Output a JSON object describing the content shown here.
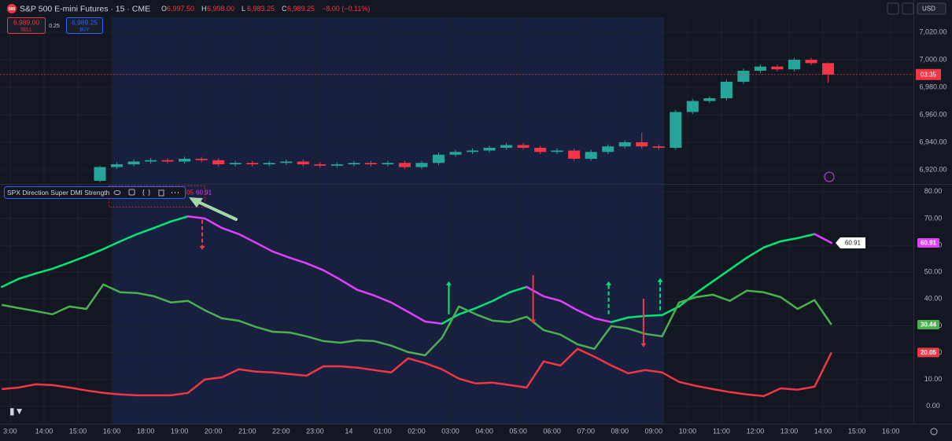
{
  "toolbar": {
    "logo": "500",
    "symbol": "S&P 500 E-mini Futures · 15 · CME",
    "ohlc": [
      {
        "k": "O",
        "v": "6,997.50"
      },
      {
        "k": "H",
        "v": "6,998.00"
      },
      {
        "k": "L",
        "v": "6,983.25"
      },
      {
        "k": "C",
        "v": "6,989.25"
      }
    ],
    "change": "−8.00 (−0.11%)",
    "sell_price": "6,989.00",
    "sell_label": "SELL",
    "spread": "0.25",
    "buy_price": "6,989.25",
    "buy_label": "BUY",
    "currency": "USD"
  },
  "countdown": "03:35",
  "indicator_legend": {
    "name": "SPX Direction Super DMI Strength",
    "values": [
      "05",
      "60.91"
    ]
  },
  "chart_data": [
    {
      "type": "candlestick",
      "up_color": "#26a69a",
      "down_color": "#f23645",
      "x": [
        2.65,
        3.15,
        3.65,
        4.15,
        4.65,
        5.15,
        5.65,
        6.15,
        6.65,
        7.15,
        7.65,
        8.15,
        8.65,
        9.15,
        9.65,
        10.15,
        10.65,
        11.15,
        11.65,
        12.15,
        12.65,
        13.15,
        13.65,
        14.15,
        14.65,
        15.15,
        15.65,
        16.15,
        16.65,
        17.15,
        17.65,
        18.15,
        18.65,
        19.15,
        19.65,
        20.15,
        20.65,
        21.15,
        21.65,
        22.15,
        22.65,
        23.15,
        23.65,
        24.15
      ],
      "open": [
        6912,
        6922,
        6924,
        6926,
        6927,
        6926,
        6928,
        6927,
        6924,
        6925,
        6924,
        6925,
        6926,
        6924,
        6923,
        6924,
        6925,
        6924,
        6925,
        6922,
        6925,
        6931,
        6933,
        6934,
        6936,
        6938,
        6936,
        6933,
        6934,
        6928,
        6933,
        6937,
        6940,
        6937,
        6936,
        6962,
        6970,
        6972,
        6984,
        6992,
        6995,
        6993,
        7000,
        6997.5
      ],
      "high": [
        6923,
        6925.5,
        6927.5,
        6928.5,
        6928.5,
        6929.5,
        6929.5,
        6928.5,
        6926.5,
        6926.5,
        6926.5,
        6927.5,
        6927.5,
        6925.5,
        6925.5,
        6926.5,
        6926.5,
        6926.5,
        6926.5,
        6926.5,
        6932.5,
        6934.5,
        6935.5,
        6937.5,
        6939.5,
        6939.5,
        6937.5,
        6935.5,
        6935.5,
        6934.5,
        6938.5,
        6941.5,
        6947,
        6938.5,
        6963.5,
        6971.5,
        6973.5,
        6985.5,
        6993.5,
        6996.5,
        6996.5,
        7001.5,
        7001.5,
        6998
      ],
      "low": [
        6911,
        6920.5,
        6922.5,
        6924.5,
        6924.5,
        6924.5,
        6925.5,
        6922.5,
        6922.5,
        6922.5,
        6922.5,
        6923.5,
        6922.5,
        6921.5,
        6921.5,
        6922.5,
        6922.5,
        6922.5,
        6920.5,
        6920.5,
        6923.5,
        6929.5,
        6931.5,
        6932.5,
        6934.5,
        6934.5,
        6931.5,
        6931.5,
        6926.5,
        6926.5,
        6931.5,
        6935.5,
        6935.5,
        6934.5,
        6934.5,
        6960.5,
        6968.5,
        6970.5,
        6982.5,
        6990.5,
        6991.5,
        6991.5,
        6996,
        6983.25
      ],
      "close": [
        6922,
        6924,
        6926,
        6927,
        6926,
        6928,
        6927,
        6924,
        6925,
        6924,
        6925,
        6926,
        6924,
        6923,
        6924,
        6925,
        6924,
        6925,
        6922,
        6925,
        6931,
        6933,
        6934,
        6936,
        6938,
        6936,
        6933,
        6934,
        6928,
        6933,
        6937,
        6940,
        6937,
        6936,
        6962,
        6970,
        6972,
        6984,
        6992,
        6995,
        6993,
        7000,
        6997.5,
        6989.25
      ],
      "ylim": [
        6910.3,
        7027.4
      ],
      "yticks": [
        {
          "value": 6920,
          "label": "6,920.00"
        },
        {
          "value": 6940,
          "label": "6,940.00"
        },
        {
          "value": 6960,
          "label": "6,960.00"
        },
        {
          "value": 6980,
          "label": "6,980.00"
        },
        {
          "value": 7000,
          "label": "7,000.00"
        },
        {
          "value": 7020,
          "label": "7,020.00"
        }
      ],
      "grid": true
    },
    {
      "type": "line",
      "x": [
        -0.25,
        0.25,
        0.75,
        1.25,
        1.75,
        2.25,
        2.75,
        3.25,
        3.75,
        4.25,
        4.75,
        5.25,
        5.75,
        6.25,
        6.75,
        7.25,
        7.75,
        8.25,
        8.75,
        9.25,
        9.75,
        10.25,
        10.75,
        11.25,
        11.75,
        12.25,
        12.75,
        13.25,
        13.75,
        14.25,
        14.75,
        15.25,
        15.75,
        16.25,
        16.75,
        17.25,
        17.75,
        18.25,
        18.75,
        19.25,
        19.75,
        20.25,
        20.75,
        21.25,
        21.75,
        22.25,
        22.75,
        23.25,
        23.75,
        24.25
      ],
      "series": [
        {
          "color": "#00e676",
          "falling_color": "#e040fb",
          "values": [
            44.5,
            47.5,
            49.5,
            51.3,
            53.6,
            56,
            58.6,
            61.5,
            64.2,
            66.5,
            68.9,
            70.8,
            70,
            66.5,
            64.2,
            61,
            57.7,
            55.4,
            53.3,
            50.7,
            47.2,
            43.4,
            41.3,
            38.7,
            35.2,
            31.6,
            30.8,
            34.3,
            36.6,
            39.3,
            42.5,
            44.5,
            41,
            39.3,
            35.8,
            32.8,
            31.4,
            33.1,
            33.7,
            34,
            37.2,
            42.2,
            46.6,
            51,
            55.4,
            59.2,
            61.5,
            62.7,
            64.2,
            60.91
          ]
        },
        {
          "color": "#4caf50",
          "values": [
            37.8,
            36.6,
            35.5,
            34.3,
            37.2,
            36.3,
            45.4,
            42.5,
            42.2,
            41,
            38.7,
            39.3,
            35.8,
            32.8,
            31.9,
            29.6,
            27.8,
            27.5,
            26.1,
            24.3,
            23.7,
            24.6,
            24.3,
            22.6,
            20.2,
            19,
            25.5,
            37.2,
            34.3,
            31.9,
            31.4,
            33.4,
            28.4,
            26.7,
            23.1,
            21.4,
            29.9,
            29,
            27,
            26.1,
            38.7,
            40.7,
            41.6,
            39.3,
            43.1,
            42.5,
            40.7,
            36.3,
            39.6,
            30.44
          ]
        },
        {
          "color": "#f23645",
          "values": [
            6.4,
            7,
            8.2,
            7.9,
            7,
            5.9,
            5,
            4.4,
            4.1,
            4.1,
            4.1,
            5,
            10,
            10.8,
            13.8,
            12.9,
            12.6,
            12,
            11.4,
            14.9,
            14.9,
            14.4,
            13.5,
            12.6,
            17.9,
            16.1,
            13.8,
            10.3,
            8.5,
            8.8,
            7.9,
            7,
            16.7,
            15.2,
            21.4,
            18.5,
            15.2,
            12.3,
            13.5,
            12.6,
            9.1,
            7.6,
            6.4,
            5.3,
            4.4,
            3.8,
            6.7,
            6.2,
            7.3,
            20.05
          ]
        }
      ],
      "signals": [
        {
          "x": 5.67,
          "from": 69.5,
          "to": 58.3,
          "color": "#f23645",
          "style": "dashed"
        },
        {
          "x": 12.95,
          "from": 34.3,
          "to": 46.6,
          "color": "#00e676",
          "style": "solid"
        },
        {
          "x": 15.44,
          "from": 48.9,
          "to": 30.8,
          "color": "#f23645",
          "style": "solid"
        },
        {
          "x": 17.67,
          "from": 34.3,
          "to": 46.6,
          "color": "#00e676",
          "style": "dashed"
        },
        {
          "x": 18.7,
          "from": 40.1,
          "to": 22,
          "color": "#f23645",
          "style": "solid"
        },
        {
          "x": 19.19,
          "from": 35.8,
          "to": 47.8,
          "color": "#00e676",
          "style": "dashed"
        }
      ],
      "session": [
        3.02,
        19.3
      ],
      "xlim": [
        -0.3,
        26.67
      ],
      "xticks": [
        {
          "value": 0,
          "label": "3:00"
        },
        {
          "value": 1,
          "label": "14:00"
        },
        {
          "value": 2,
          "label": "15:00"
        },
        {
          "value": 3,
          "label": "16:00"
        },
        {
          "value": 4,
          "label": "18:00"
        },
        {
          "value": 5,
          "label": "19:00"
        },
        {
          "value": 6,
          "label": "20:00"
        },
        {
          "value": 7,
          "label": "21:00"
        },
        {
          "value": 8,
          "label": "22:00"
        },
        {
          "value": 9,
          "label": "23:00"
        },
        {
          "value": 10,
          "label": "14"
        },
        {
          "value": 11,
          "label": "01:00"
        },
        {
          "value": 12,
          "label": "02:00"
        },
        {
          "value": 13,
          "label": "03:00"
        },
        {
          "value": 14,
          "label": "04:00"
        },
        {
          "value": 15,
          "label": "05:00"
        },
        {
          "value": 16,
          "label": "06:00"
        },
        {
          "value": 17,
          "label": "07:00"
        },
        {
          "value": 18,
          "label": "08:00"
        },
        {
          "value": 19,
          "label": "09:00"
        },
        {
          "value": 20,
          "label": "10:00"
        },
        {
          "value": 21,
          "label": "11:00"
        },
        {
          "value": 22,
          "label": "12:00"
        },
        {
          "value": 23,
          "label": "13:00"
        },
        {
          "value": 24,
          "label": "14:00"
        },
        {
          "value": 25,
          "label": "15:00"
        },
        {
          "value": 26,
          "label": "16:00"
        }
      ],
      "ylim": [
        -6.2,
        82.3
      ],
      "yticks": [
        {
          "value": 0,
          "label": "0.00"
        },
        {
          "value": 10,
          "label": "10.00"
        },
        {
          "value": 20,
          "label": "20.00"
        },
        {
          "value": 30,
          "label": "30.00"
        },
        {
          "value": 40,
          "label": "40.00"
        },
        {
          "value": 50,
          "label": "50.00"
        },
        {
          "value": 60,
          "label": "60.00"
        },
        {
          "value": 70,
          "label": "70.00"
        },
        {
          "value": 80,
          "label": "80.00"
        }
      ],
      "grid": true
    }
  ]
}
